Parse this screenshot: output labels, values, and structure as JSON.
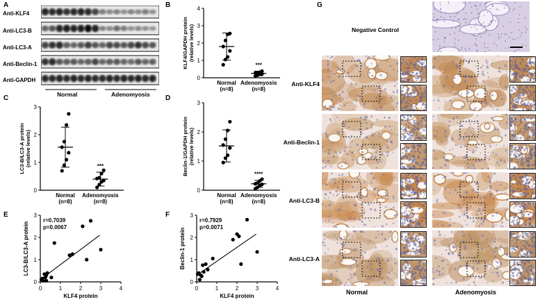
{
  "panel_letters": {
    "a": "A",
    "b": "B",
    "c": "C",
    "d": "D",
    "e": "E",
    "f": "F",
    "g": "G"
  },
  "western_blot": {
    "bands": [
      "Anti-KLF4",
      "Anti-LC3-B",
      "Anti-LC3-A",
      "Anti-Beclin-1",
      "Anti-GAPDH"
    ],
    "groups": [
      "Normal",
      "Adenomyosis"
    ]
  },
  "chart_data": [
    {
      "type": "scatter",
      "panel": "B",
      "ylabel": "KLF4/GAPDH protein\n(relative levels)",
      "categories": [
        "Normal\n(n=8)",
        "Adenomyosis\n(n=8)"
      ],
      "ylim": [
        0,
        4
      ],
      "yticks": [
        0,
        1,
        2,
        3,
        4
      ],
      "significance": "***",
      "groups": [
        {
          "name": "Normal",
          "mean": 1.8,
          "sd": 0.78,
          "points": [
            0.75,
            1.05,
            1.2,
            1.55,
            1.8,
            2.15,
            2.5,
            2.55
          ]
        },
        {
          "name": "Adenomyosis",
          "mean": 0.25,
          "sd": 0.13,
          "points": [
            0.1,
            0.15,
            0.2,
            0.22,
            0.28,
            0.3,
            0.32,
            0.38
          ]
        }
      ]
    },
    {
      "type": "scatter",
      "panel": "C",
      "ylabel": "LC3-B/LC3-A protein\n(relative levels)",
      "categories": [
        "Normal\n(n=8)",
        "Adenomyosis\n(n=8)"
      ],
      "ylim": [
        0,
        3
      ],
      "yticks": [
        0,
        1,
        2,
        3
      ],
      "significance": "***",
      "groups": [
        {
          "name": "Normal",
          "mean": 1.55,
          "sd": 0.72,
          "points": [
            0.7,
            0.9,
            1.1,
            1.35,
            1.55,
            1.75,
            2.35,
            2.75
          ]
        },
        {
          "name": "Adenomyosis",
          "mean": 0.4,
          "sd": 0.25,
          "points": [
            0.1,
            0.2,
            0.3,
            0.35,
            0.42,
            0.45,
            0.6,
            0.72
          ]
        }
      ]
    },
    {
      "type": "scatter",
      "panel": "D",
      "ylabel": "Beclin-1/GAPDH protein\n(relative levels)",
      "categories": [
        "Normal\n(n=8)",
        "Adenomyosis\n(n=8)"
      ],
      "ylim": [
        0,
        3
      ],
      "yticks": [
        0,
        1,
        2,
        3
      ],
      "significance": "****",
      "groups": [
        {
          "name": "Normal",
          "mean": 1.52,
          "sd": 0.55,
          "points": [
            0.95,
            1.1,
            1.2,
            1.45,
            1.55,
            1.75,
            2.05,
            2.35
          ]
        },
        {
          "name": "Adenomyosis",
          "mean": 0.22,
          "sd": 0.12,
          "points": [
            0.05,
            0.1,
            0.15,
            0.2,
            0.22,
            0.25,
            0.32,
            0.38
          ]
        }
      ]
    },
    {
      "type": "scatter",
      "panel": "E",
      "xlabel": "KLF4 protein",
      "ylabel": "LC3-B/LC3-A protein",
      "xlim": [
        0,
        4
      ],
      "ylim": [
        0,
        3
      ],
      "xticks": [
        0,
        1,
        2,
        3,
        4
      ],
      "yticks": [
        0,
        1,
        2,
        3
      ],
      "annotation": [
        "r=0.7039",
        "p=0.0067"
      ],
      "fit": {
        "x0": 0,
        "y0": 0.1,
        "x1": 2.95,
        "y1": 2.1
      },
      "x": [
        0.05,
        0.1,
        0.15,
        0.2,
        0.25,
        0.3,
        0.35,
        0.3,
        0.55,
        0.7,
        1.45,
        1.6,
        2.1,
        2.3,
        2.5,
        3.0
      ],
      "y": [
        0.1,
        0.15,
        0.05,
        0.35,
        0.2,
        0.3,
        0.4,
        0.05,
        0.2,
        1.75,
        1.2,
        1.25,
        2.5,
        1.0,
        2.75,
        1.45
      ]
    },
    {
      "type": "scatter",
      "panel": "F",
      "xlabel": "KLF4 protein",
      "ylabel": "Beclin-1 protein",
      "xlim": [
        0,
        4
      ],
      "ylim": [
        0,
        3
      ],
      "xticks": [
        0,
        1,
        2,
        3,
        4
      ],
      "yticks": [
        0,
        1,
        2,
        3
      ],
      "annotation": [
        "r=0.7929",
        "p=0.0071"
      ],
      "fit": {
        "x0": 0,
        "y0": 0.3,
        "x1": 2.95,
        "y1": 2.15
      },
      "x": [
        0.05,
        0.1,
        0.15,
        0.2,
        0.25,
        0.3,
        0.35,
        0.45,
        0.55,
        0.8,
        1.8,
        2.0,
        2.1,
        2.2,
        2.5,
        3.0
      ],
      "y": [
        0.35,
        0.4,
        0.1,
        0.3,
        0.25,
        0.75,
        0.45,
        0.8,
        0.55,
        1.05,
        1.9,
        2.15,
        2.05,
        0.8,
        2.8,
        1.35
      ]
    }
  ],
  "ihc": {
    "negative_control": "Negative Control",
    "rows": [
      "Anti-KLF4",
      "Anti-Beclin-1",
      "Anti-LC3-B",
      "Anti-LC3-A"
    ],
    "columns": [
      "Normal",
      "Adenomyosis"
    ]
  },
  "colors": {
    "stain_brown": "#b9804a",
    "tissue_pink": "#d9b8c6",
    "nuclei_blue": "#6a6ca8",
    "background": "#f2ece8"
  }
}
